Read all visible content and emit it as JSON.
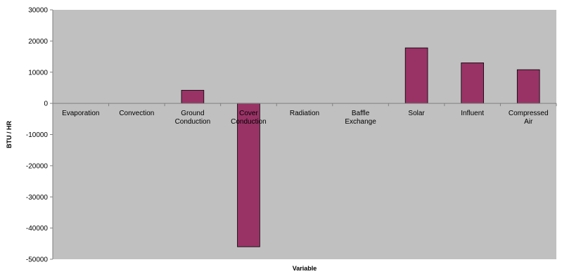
{
  "chart_data": {
    "type": "bar",
    "title": "",
    "xlabel": "Variable",
    "ylabel": "BTU / HR",
    "ylim": [
      -50000,
      30000
    ],
    "yticks": [
      30000,
      20000,
      10000,
      0,
      -10000,
      -20000,
      -30000,
      -40000,
      -50000
    ],
    "categories": [
      [
        "Evaporation"
      ],
      [
        "Convection"
      ],
      [
        "Ground",
        "Conduction"
      ],
      [
        "Cover",
        "Conduction"
      ],
      [
        "Radiation"
      ],
      [
        "Baffle",
        "Exchange"
      ],
      [
        "Solar"
      ],
      [
        "Influent"
      ],
      [
        "Compressed",
        "Air"
      ]
    ],
    "values": [
      0,
      0,
      4200,
      -46000,
      0,
      0,
      17800,
      13000,
      10800
    ],
    "grid": false,
    "colors": {
      "bar": "#993366",
      "plot_area": "#c0c0c0",
      "axis": "#808080"
    }
  }
}
